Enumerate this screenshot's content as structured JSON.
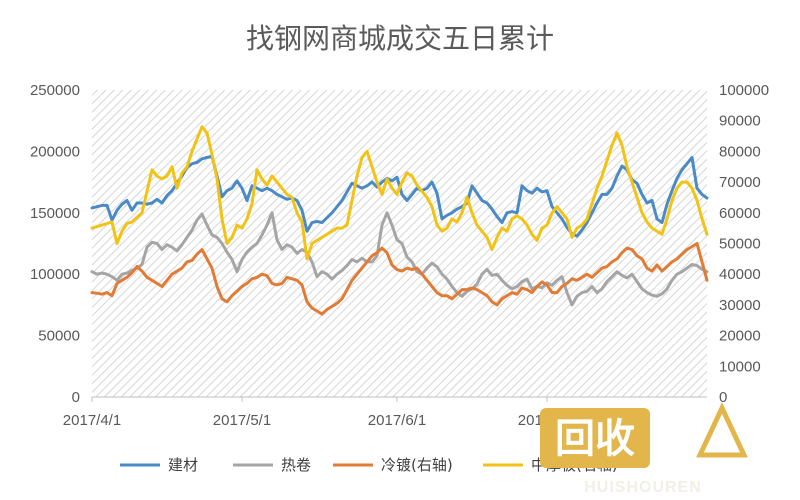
{
  "chart_data": {
    "type": "line",
    "title": "找钢网商城成交五日累计",
    "xlabel": "",
    "ylabel": "",
    "x_tick_labels": [
      "2017/4/1",
      "2017/5/1",
      "2017/6/1",
      "2017/7/1"
    ],
    "left_axis": {
      "min": 0,
      "max": 250000,
      "step": 50000,
      "tick_labels": [
        "0",
        "50000",
        "100000",
        "150000",
        "200000",
        "250000"
      ]
    },
    "right_axis": {
      "min": 0,
      "max": 100000,
      "step": 10000,
      "tick_labels": [
        "0",
        "10000",
        "20000",
        "30000",
        "40000",
        "50000",
        "60000",
        "70000",
        "80000",
        "90000",
        "100000"
      ]
    },
    "grid": false,
    "legend_position": "bottom",
    "series": [
      {
        "name": "建材",
        "axis": "left",
        "color": "#4a8ac6",
        "values": [
          154000,
          155000,
          156000,
          156000,
          144000,
          152000,
          157000,
          160000,
          152000,
          158000,
          158000,
          157000,
          158000,
          161000,
          158000,
          164000,
          168000,
          174000,
          180000,
          187000,
          190000,
          191000,
          194000,
          195000,
          196000,
          180000,
          163000,
          168000,
          170000,
          176000,
          170000,
          160000,
          172000,
          170000,
          168000,
          170000,
          168000,
          165000,
          163000,
          161000,
          162000,
          160000,
          152000,
          135000,
          142000,
          143000,
          142000,
          146000,
          150000,
          155000,
          160000,
          167000,
          174000,
          172000,
          170000,
          172000,
          175000,
          171000,
          175000,
          178000,
          176000,
          179000,
          165000,
          160000,
          165000,
          170000,
          168000,
          170000,
          175000,
          166000,
          145000,
          148000,
          150000,
          153000,
          155000,
          158000,
          172000,
          166000,
          160000,
          158000,
          153000,
          147000,
          142000,
          150000,
          151000,
          150000,
          172000,
          168000,
          166000,
          170000,
          167000,
          168000,
          155000,
          150000,
          145000,
          138000,
          133000,
          131000,
          136000,
          142000,
          150000,
          158000,
          165000,
          165000,
          170000,
          180000,
          188000,
          185000,
          177000,
          174000,
          165000,
          158000,
          160000,
          145000,
          142000,
          157000,
          168000,
          178000,
          185000,
          190000,
          195000,
          170000,
          165000,
          162000
        ]
      },
      {
        "name": "热卷",
        "axis": "left",
        "color": "#a5a5a5",
        "values": [
          102000,
          100000,
          101000,
          100000,
          98000,
          95000,
          100000,
          101000,
          103000,
          105000,
          108000,
          122000,
          126000,
          125000,
          120000,
          124000,
          122000,
          119000,
          124000,
          130000,
          136000,
          144000,
          149000,
          140000,
          132000,
          130000,
          125000,
          118000,
          112000,
          102000,
          112000,
          118000,
          122000,
          125000,
          132000,
          140000,
          150000,
          128000,
          120000,
          124000,
          122000,
          117000,
          120000,
          118000,
          110000,
          98000,
          102000,
          100000,
          96000,
          100000,
          103000,
          107000,
          112000,
          110000,
          113000,
          110000,
          110000,
          115000,
          140000,
          150000,
          140000,
          128000,
          125000,
          114000,
          110000,
          102000,
          100000,
          105000,
          109000,
          106000,
          100000,
          96000,
          90000,
          85000,
          82000,
          86000,
          88000,
          92000,
          100000,
          104000,
          99000,
          100000,
          95000,
          91000,
          88000,
          90000,
          94000,
          96000,
          88000,
          90000,
          89000,
          93000,
          91000,
          95000,
          98000,
          85000,
          75000,
          82000,
          85000,
          86000,
          90000,
          85000,
          88000,
          94000,
          98000,
          102000,
          99000,
          97000,
          100000,
          94000,
          88000,
          85000,
          83000,
          82000,
          84000,
          88000,
          95000,
          100000,
          102000,
          105000,
          108000,
          107000,
          104000,
          102000
        ]
      },
      {
        "name": "冷镀(右轴)",
        "axis": "right",
        "color": "#e27b35",
        "values": [
          34000,
          33800,
          33500,
          34000,
          33000,
          37000,
          38000,
          39000,
          40500,
          42500,
          41000,
          39000,
          38000,
          37000,
          36000,
          38000,
          40000,
          41000,
          42000,
          44000,
          44500,
          46500,
          48000,
          45000,
          42000,
          36000,
          32000,
          31000,
          33000,
          34500,
          36000,
          37000,
          38500,
          39000,
          40000,
          39500,
          37000,
          36500,
          37000,
          39000,
          38500,
          38000,
          36500,
          31000,
          29000,
          28000,
          27000,
          28500,
          29500,
          30500,
          32000,
          35000,
          38000,
          40000,
          42000,
          44000,
          46000,
          47000,
          48500,
          47000,
          43000,
          41500,
          41000,
          42000,
          41500,
          42000,
          40000,
          38000,
          36000,
          34000,
          33000,
          33000,
          32000,
          33500,
          35000,
          35000,
          35500,
          35000,
          34000,
          33000,
          31000,
          30000,
          32000,
          33000,
          34000,
          33500,
          35500,
          35000,
          34000,
          36000,
          37500,
          36500,
          34000,
          34000,
          36000,
          37000,
          38500,
          38000,
          39000,
          40000,
          39000,
          40500,
          42000,
          42500,
          44000,
          45000,
          47000,
          48500,
          48000,
          46000,
          45000,
          42000,
          41000,
          43000,
          41000,
          42500,
          44000,
          45000,
          46500,
          48000,
          49000,
          50000,
          44000,
          38000
        ]
      },
      {
        "name": "中厚板(右轴)",
        "axis": "right",
        "color": "#f2c314",
        "values": [
          55000,
          55500,
          56000,
          56500,
          57000,
          50000,
          54000,
          56500,
          57000,
          58500,
          60000,
          67000,
          74000,
          72000,
          71000,
          72000,
          75000,
          68000,
          73000,
          75000,
          80000,
          84000,
          88000,
          86000,
          79000,
          71000,
          58000,
          50000,
          52000,
          56000,
          55000,
          58000,
          63000,
          74000,
          71000,
          69000,
          72000,
          70000,
          68000,
          66000,
          65000,
          60000,
          57000,
          45000,
          50000,
          51000,
          52000,
          53000,
          54000,
          55000,
          55000,
          56000,
          64000,
          72000,
          78000,
          80000,
          75000,
          70000,
          66000,
          71000,
          68000,
          66000,
          70000,
          73000,
          72000,
          69000,
          67000,
          65000,
          62000,
          56000,
          54000,
          55000,
          58000,
          57000,
          60000,
          65000,
          60000,
          56000,
          54000,
          52000,
          48000,
          52000,
          55000,
          54000,
          58000,
          59000,
          58000,
          56000,
          53000,
          51000,
          55000,
          56000,
          60000,
          62000,
          60000,
          58000,
          52000,
          55000,
          56000,
          58000,
          63000,
          68000,
          72000,
          77000,
          82000,
          86000,
          82000,
          75000,
          70000,
          65000,
          60000,
          57000,
          55000,
          54000,
          53000,
          58000,
          64000,
          68000,
          70000,
          70000,
          68000,
          64000,
          58000,
          53000
        ]
      }
    ]
  },
  "legend": {
    "items": [
      "建材",
      "热卷",
      "冷镀(右轴)",
      "中厚板(右轴)"
    ]
  },
  "watermark": {
    "main": "回收",
    "sub": "HUISHOUREN"
  },
  "colors": {
    "plot_hatch": "#d6d6d6",
    "axis_text": "#595959",
    "watermark_bg": "#e3b64b"
  }
}
